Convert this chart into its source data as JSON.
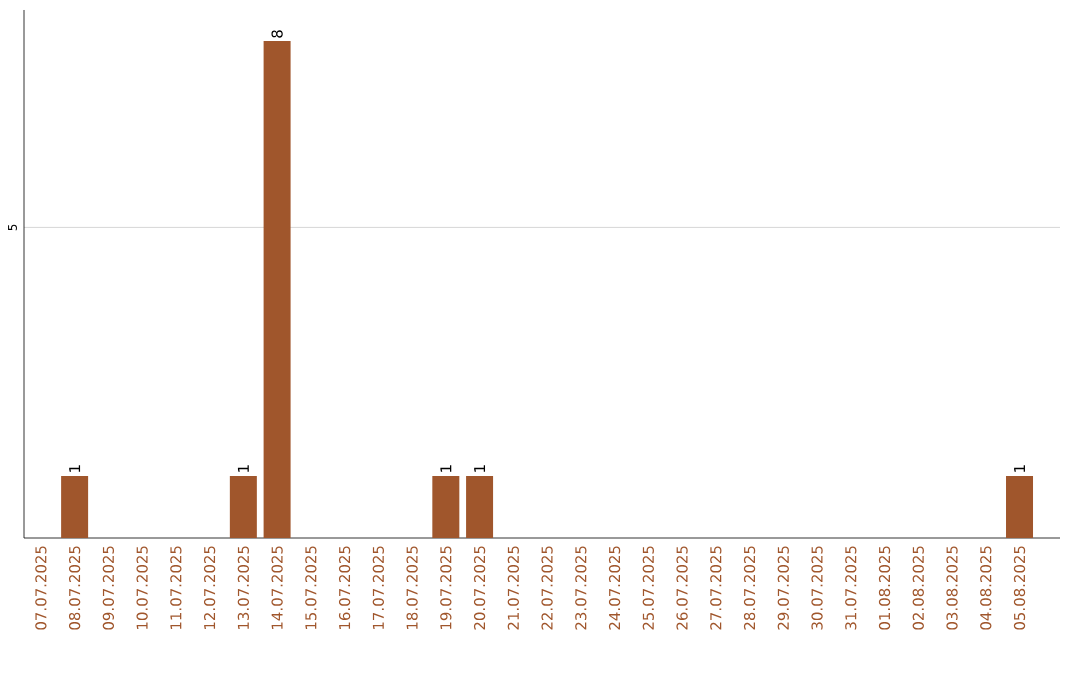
{
  "chart_data": {
    "type": "bar",
    "categories": [
      "07.07.2025",
      "08.07.2025",
      "09.07.2025",
      "10.07.2025",
      "11.07.2025",
      "12.07.2025",
      "13.07.2025",
      "14.07.2025",
      "15.07.2025",
      "16.07.2025",
      "17.07.2025",
      "18.07.2025",
      "19.07.2025",
      "20.07.2025",
      "21.07.2025",
      "22.07.2025",
      "23.07.2025",
      "24.07.2025",
      "25.07.2025",
      "26.07.2025",
      "27.07.2025",
      "28.07.2025",
      "29.07.2025",
      "30.07.2025",
      "31.07.2025",
      "01.08.2025",
      "02.08.2025",
      "03.08.2025",
      "04.08.2025",
      "05.08.2025"
    ],
    "values": [
      0,
      1,
      0,
      0,
      0,
      0,
      1,
      8,
      0,
      0,
      0,
      0,
      1,
      1,
      0,
      0,
      0,
      0,
      0,
      0,
      0,
      0,
      0,
      0,
      0,
      0,
      0,
      0,
      0,
      1
    ],
    "value_labels": [
      null,
      "1",
      null,
      null,
      null,
      null,
      "1",
      "8",
      null,
      null,
      null,
      null,
      "1",
      "1",
      null,
      null,
      null,
      null,
      null,
      null,
      null,
      null,
      null,
      null,
      null,
      null,
      null,
      null,
      null,
      "1"
    ],
    "color": "#a0562c",
    "ylim": [
      0,
      8.5
    ],
    "yticks": [
      5
    ],
    "grid": "y"
  }
}
